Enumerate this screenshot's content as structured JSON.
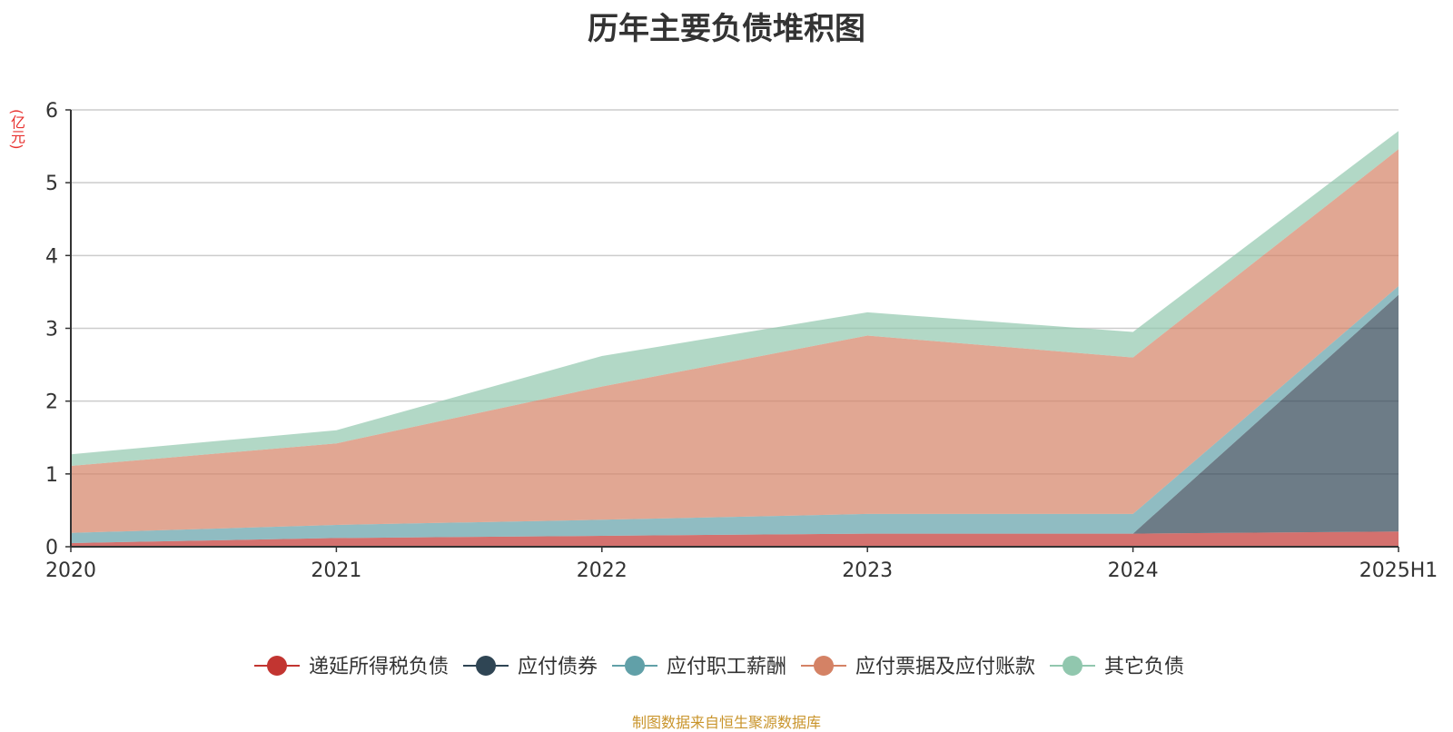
{
  "title": "历年主要负债堆积图",
  "ylabel": "(亿元)",
  "source": "制图数据来自恒生聚源数据库",
  "chart_data": {
    "type": "area",
    "stacked": true,
    "title": "历年主要负债堆积图",
    "ylabel": "(亿元)",
    "xlabel": "",
    "categories": [
      "2020",
      "2021",
      "2022",
      "2023",
      "2024",
      "2025H1"
    ],
    "ylim": [
      0,
      6
    ],
    "yticks": [
      "0",
      "1",
      "2",
      "3",
      "4",
      "5",
      "6"
    ],
    "grid": true,
    "legend_position": "bottom",
    "series": [
      {
        "name": "递延所得税负债",
        "color": "#c23531",
        "values": [
          0.05,
          0.12,
          0.15,
          0.18,
          0.18,
          0.21
        ]
      },
      {
        "name": "应付债券",
        "color": "#2f4554",
        "values": [
          0,
          0,
          0,
          0,
          0,
          3.25
        ]
      },
      {
        "name": "应付职工薪酬",
        "color": "#61a0a8",
        "values": [
          0.14,
          0.18,
          0.22,
          0.27,
          0.27,
          0.12
        ]
      },
      {
        "name": "应付票据及应付账款",
        "color": "#d48265",
        "values": [
          0.92,
          1.12,
          1.83,
          2.45,
          2.15,
          1.88
        ]
      },
      {
        "name": "其它负债",
        "color": "#91c7ae",
        "values": [
          0.16,
          0.18,
          0.42,
          0.32,
          0.35,
          0.25
        ]
      }
    ]
  }
}
